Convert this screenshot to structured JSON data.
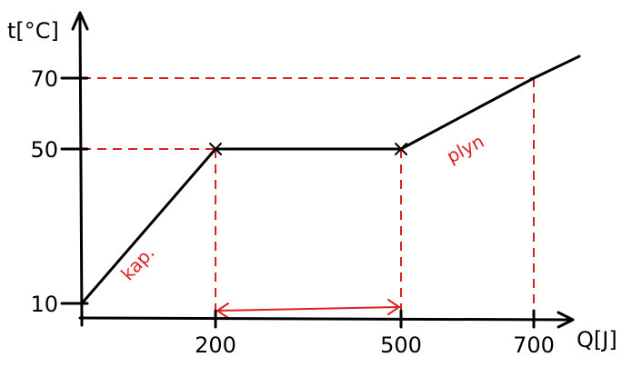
{
  "chart_data": {
    "type": "line",
    "title": "",
    "xlabel": "Q[J]",
    "ylabel": "t[°C]",
    "xlim": [
      0,
      700
    ],
    "ylim": [
      10,
      70
    ],
    "x_ticks": [
      200,
      500,
      700
    ],
    "y_ticks": [
      10,
      50,
      70
    ],
    "x_tick_labels": [
      "200",
      "500",
      "700"
    ],
    "y_tick_labels": [
      "10",
      "50",
      "70"
    ],
    "grid": false,
    "series": [
      {
        "points": [
          {
            "x": 0,
            "y": 10
          },
          {
            "x": 200,
            "y": 50
          },
          {
            "x": 500,
            "y": 50
          },
          {
            "x": 700,
            "y": 70
          }
        ]
      }
    ],
    "guides": [
      {
        "x": 200,
        "y": 50
      },
      {
        "x": 500,
        "y": 50
      },
      {
        "x": 700,
        "y": 70
      }
    ],
    "annotations": [
      {
        "text": "kap.",
        "segment": "liquid"
      },
      {
        "text": "plyn",
        "segment": "gas"
      }
    ],
    "span": {
      "from": 200,
      "to": 500
    }
  },
  "colors": {
    "axis": "#000000",
    "guide": "#e02020",
    "annotation": "#e02020"
  }
}
